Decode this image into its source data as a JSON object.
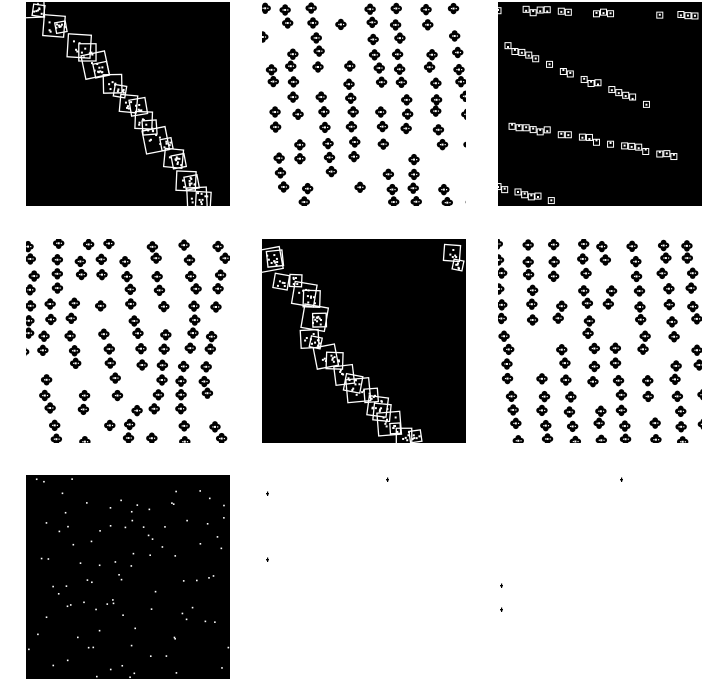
{
  "grid": {
    "rows": 3,
    "cols": 3,
    "panels": [
      {
        "id": "p0",
        "kind": "diagonal-band",
        "background": "#000000",
        "ink": "#ffffff",
        "direction": "down-right"
      },
      {
        "id": "p1",
        "kind": "flower-stripes",
        "background": "#ffffff",
        "ink": "#000000",
        "direction": "steep-down-right"
      },
      {
        "id": "p2",
        "kind": "dotted-bands",
        "background": "#000000",
        "ink": "#ffffff",
        "direction": "shallow-down-right"
      },
      {
        "id": "p3",
        "kind": "flower-stripes",
        "background": "#ffffff",
        "ink": "#000000",
        "direction": "wavy-vertical"
      },
      {
        "id": "p4",
        "kind": "diagonal-band",
        "background": "#000000",
        "ink": "#ffffff",
        "direction": "down-right"
      },
      {
        "id": "p5",
        "kind": "flower-stripes",
        "background": "#ffffff",
        "ink": "#000000",
        "direction": "steep-down-right"
      },
      {
        "id": "p6",
        "kind": "sparse-dots",
        "background": "#000000",
        "ink": "#ffffff"
      },
      {
        "id": "p7",
        "kind": "sparse-specks",
        "background": "#ffffff",
        "ink": "#000000"
      },
      {
        "id": "p8",
        "kind": "sparse-specks",
        "background": "#ffffff",
        "ink": "#000000"
      }
    ]
  }
}
